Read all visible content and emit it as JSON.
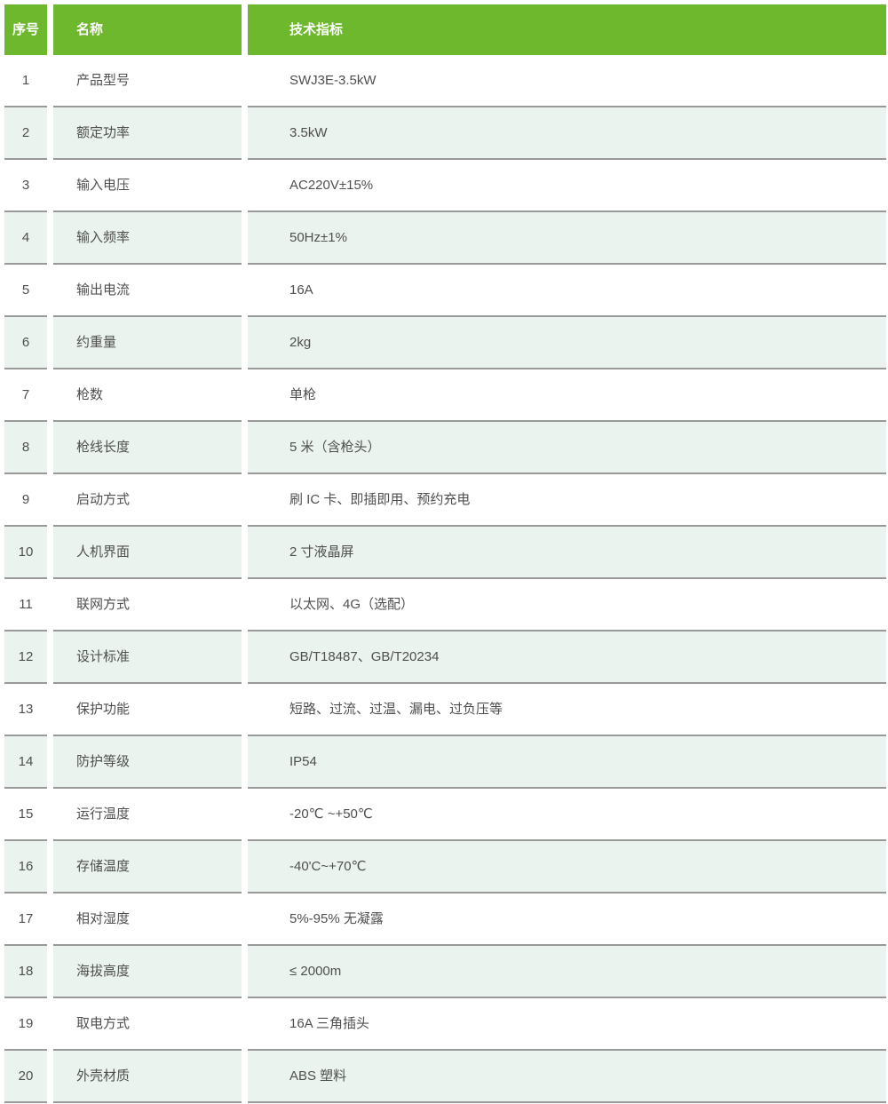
{
  "table": {
    "columns": [
      {
        "key": "index",
        "label": "序号"
      },
      {
        "key": "name",
        "label": "名称"
      },
      {
        "key": "spec",
        "label": "技术指标"
      }
    ],
    "rows": [
      {
        "index": "1",
        "name": "产品型号",
        "spec": "SWJ3E-3.5kW"
      },
      {
        "index": "2",
        "name": "额定功率",
        "spec": "3.5kW"
      },
      {
        "index": "3",
        "name": "输入电压",
        "spec": "AC220V±15%"
      },
      {
        "index": "4",
        "name": "输入频率",
        "spec": "50Hz±1%"
      },
      {
        "index": "5",
        "name": "输出电流",
        "spec": "16A"
      },
      {
        "index": "6",
        "name": "约重量",
        "spec": "2kg"
      },
      {
        "index": "7",
        "name": "枪数",
        "spec": "单枪"
      },
      {
        "index": "8",
        "name": "枪线长度",
        "spec": "5 米（含枪头）"
      },
      {
        "index": "9",
        "name": "启动方式",
        "spec": "刷 IC 卡、即插即用、预约充电"
      },
      {
        "index": "10",
        "name": "人机界面",
        "spec": "2 寸液晶屏"
      },
      {
        "index": "11",
        "name": "联网方式",
        "spec": "以太网、4G（选配）"
      },
      {
        "index": "12",
        "name": "设计标准",
        "spec": "GB/T18487、GB/T20234"
      },
      {
        "index": "13",
        "name": "保护功能",
        "spec": "短路、过流、过温、漏电、过负压等"
      },
      {
        "index": "14",
        "name": "防护等级",
        "spec": "IP54"
      },
      {
        "index": "15",
        "name": "运行温度",
        "spec": "-20℃ ~+50℃"
      },
      {
        "index": "16",
        "name": "存储温度",
        "spec": "-40'C~+70℃"
      },
      {
        "index": "17",
        "name": "相对湿度",
        "spec": "5%-95% 无凝露"
      },
      {
        "index": "18",
        "name": "海拔高度",
        "spec": "≤ 2000m"
      },
      {
        "index": "19",
        "name": "取电方式",
        "spec": "16A 三角插头"
      },
      {
        "index": "20",
        "name": "外壳材质",
        "spec": "ABS 塑料"
      }
    ]
  },
  "colors": {
    "header_green": "#6eb82d",
    "row_alt_green": "#eaf3ed",
    "divider_gray": "#999999",
    "text": "#4f4f4f",
    "header_text": "#ffffff"
  }
}
